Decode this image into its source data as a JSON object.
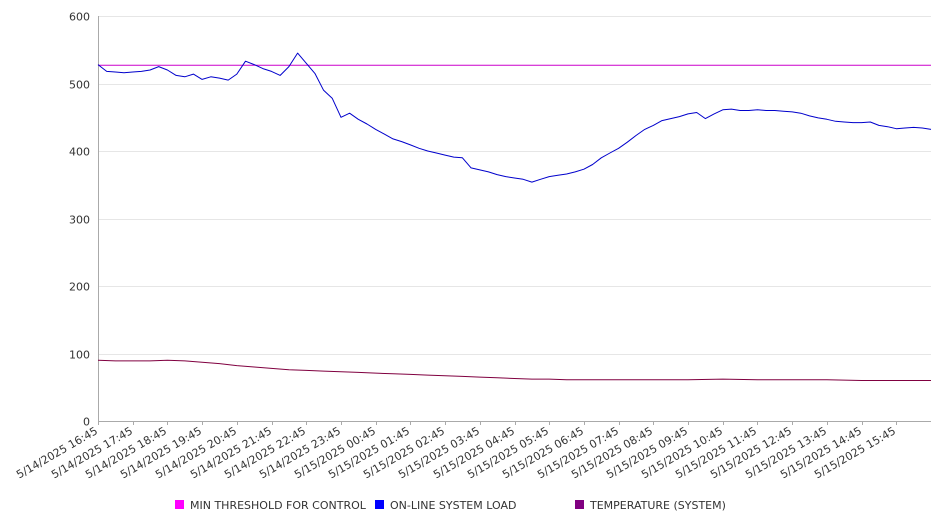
{
  "chart_data": {
    "type": "line",
    "title": "",
    "xlabel": "",
    "ylabel": "",
    "ylim": [
      0,
      600
    ],
    "y_ticks": [
      0,
      100,
      200,
      300,
      400,
      500,
      600
    ],
    "grid": "horizontal",
    "legend_position": "bottom",
    "x_tick_labels": [
      "5/14/2025 16:45",
      "5/14/2025 17:45",
      "5/14/2025 18:45",
      "5/14/2025 19:45",
      "5/14/2025 20:45",
      "5/14/2025 21:45",
      "5/14/2025 22:45",
      "5/14/2025 23:45",
      "5/15/2025 00:45",
      "5/15/2025 01:45",
      "5/15/2025 02:45",
      "5/15/2025 03:45",
      "5/15/2025 04:45",
      "5/15/2025 05:45",
      "5/15/2025 06:45",
      "5/15/2025 07:45",
      "5/15/2025 08:45",
      "5/15/2025 09:45",
      "5/15/2025 10:45",
      "5/15/2025 11:45",
      "5/15/2025 12:45",
      "5/15/2025 13:45",
      "5/15/2025 14:45",
      "5/15/2025 15:45"
    ],
    "series": [
      {
        "name": "MIN THRESHOLD FOR CONTROL",
        "color": "#cc00cc",
        "legend_color": "#ff00ff",
        "points": [
          [
            "5/14/2025 16:45",
            527
          ],
          [
            "5/15/2025 16:45",
            527
          ]
        ]
      },
      {
        "name": "ON-LINE SYSTEM LOAD",
        "color": "#0000cc",
        "legend_color": "#0000ff",
        "points": [
          [
            "5/14/2025 16:45",
            528
          ],
          [
            "5/14/2025 17:00",
            518
          ],
          [
            "5/14/2025 17:15",
            517
          ],
          [
            "5/14/2025 17:30",
            516
          ],
          [
            "5/14/2025 17:45",
            517
          ],
          [
            "5/14/2025 18:00",
            518
          ],
          [
            "5/14/2025 18:15",
            520
          ],
          [
            "5/14/2025 18:30",
            525
          ],
          [
            "5/14/2025 18:45",
            520
          ],
          [
            "5/14/2025 19:00",
            512
          ],
          [
            "5/14/2025 19:15",
            510
          ],
          [
            "5/14/2025 19:30",
            514
          ],
          [
            "5/14/2025 19:45",
            506
          ],
          [
            "5/14/2025 20:00",
            510
          ],
          [
            "5/14/2025 20:15",
            508
          ],
          [
            "5/14/2025 20:30",
            505
          ],
          [
            "5/14/2025 20:45",
            514
          ],
          [
            "5/14/2025 21:00",
            533
          ],
          [
            "5/14/2025 21:15",
            528
          ],
          [
            "5/14/2025 21:30",
            522
          ],
          [
            "5/14/2025 21:45",
            518
          ],
          [
            "5/14/2025 22:00",
            512
          ],
          [
            "5/14/2025 22:15",
            525
          ],
          [
            "5/14/2025 22:30",
            545
          ],
          [
            "5/14/2025 22:45",
            530
          ],
          [
            "5/14/2025 23:00",
            515
          ],
          [
            "5/14/2025 23:15",
            490
          ],
          [
            "5/14/2025 23:30",
            478
          ],
          [
            "5/14/2025 23:45",
            450
          ],
          [
            "5/15/2025 00:00",
            456
          ],
          [
            "5/15/2025 00:15",
            447
          ],
          [
            "5/15/2025 00:30",
            440
          ],
          [
            "5/15/2025 00:45",
            432
          ],
          [
            "5/15/2025 01:00",
            425
          ],
          [
            "5/15/2025 01:15",
            418
          ],
          [
            "5/15/2025 01:30",
            414
          ],
          [
            "5/15/2025 01:45",
            409
          ],
          [
            "5/15/2025 02:00",
            404
          ],
          [
            "5/15/2025 02:15",
            400
          ],
          [
            "5/15/2025 02:30",
            397
          ],
          [
            "5/15/2025 02:45",
            394
          ],
          [
            "5/15/2025 03:00",
            391
          ],
          [
            "5/15/2025 03:15",
            390
          ],
          [
            "5/15/2025 03:30",
            375
          ],
          [
            "5/15/2025 03:45",
            372
          ],
          [
            "5/15/2025 04:00",
            369
          ],
          [
            "5/15/2025 04:15",
            365
          ],
          [
            "5/15/2025 04:30",
            362
          ],
          [
            "5/15/2025 04:45",
            360
          ],
          [
            "5/15/2025 05:00",
            358
          ],
          [
            "5/15/2025 05:15",
            354
          ],
          [
            "5/15/2025 05:30",
            358
          ],
          [
            "5/15/2025 05:45",
            362
          ],
          [
            "5/15/2025 06:00",
            364
          ],
          [
            "5/15/2025 06:15",
            366
          ],
          [
            "5/15/2025 06:30",
            369
          ],
          [
            "5/15/2025 06:45",
            373
          ],
          [
            "5/15/2025 07:00",
            380
          ],
          [
            "5/15/2025 07:15",
            390
          ],
          [
            "5/15/2025 07:30",
            397
          ],
          [
            "5/15/2025 07:45",
            404
          ],
          [
            "5/15/2025 08:00",
            413
          ],
          [
            "5/15/2025 08:15",
            423
          ],
          [
            "5/15/2025 08:30",
            432
          ],
          [
            "5/15/2025 08:45",
            438
          ],
          [
            "5/15/2025 09:00",
            445
          ],
          [
            "5/15/2025 09:15",
            448
          ],
          [
            "5/15/2025 09:30",
            451
          ],
          [
            "5/15/2025 09:45",
            455
          ],
          [
            "5/15/2025 10:00",
            457
          ],
          [
            "5/15/2025 10:15",
            448
          ],
          [
            "5/15/2025 10:30",
            455
          ],
          [
            "5/15/2025 10:45",
            461
          ],
          [
            "5/15/2025 11:00",
            462
          ],
          [
            "5/15/2025 11:15",
            460
          ],
          [
            "5/15/2025 11:30",
            460
          ],
          [
            "5/15/2025 11:45",
            461
          ],
          [
            "5/15/2025 12:00",
            460
          ],
          [
            "5/15/2025 12:15",
            460
          ],
          [
            "5/15/2025 12:30",
            459
          ],
          [
            "5/15/2025 12:45",
            458
          ],
          [
            "5/15/2025 13:00",
            456
          ],
          [
            "5/15/2025 13:15",
            452
          ],
          [
            "5/15/2025 13:30",
            449
          ],
          [
            "5/15/2025 13:45",
            447
          ],
          [
            "5/15/2025 14:00",
            444
          ],
          [
            "5/15/2025 14:15",
            443
          ],
          [
            "5/15/2025 14:30",
            442
          ],
          [
            "5/15/2025 14:45",
            442
          ],
          [
            "5/15/2025 15:00",
            443
          ],
          [
            "5/15/2025 15:15",
            438
          ],
          [
            "5/15/2025 15:30",
            436
          ],
          [
            "5/15/2025 15:45",
            433
          ],
          [
            "5/15/2025 16:00",
            434
          ],
          [
            "5/15/2025 16:15",
            435
          ],
          [
            "5/15/2025 16:30",
            434
          ],
          [
            "5/15/2025 16:45",
            432
          ]
        ]
      },
      {
        "name": "TEMPERATURE (SYSTEM)",
        "color": "#800040",
        "legend_color": "#800080",
        "points": [
          [
            "5/14/2025 16:45",
            90
          ],
          [
            "5/14/2025 17:15",
            89
          ],
          [
            "5/14/2025 17:45",
            89
          ],
          [
            "5/14/2025 18:15",
            89
          ],
          [
            "5/14/2025 18:45",
            90
          ],
          [
            "5/14/2025 19:15",
            89
          ],
          [
            "5/14/2025 19:45",
            87
          ],
          [
            "5/14/2025 20:15",
            85
          ],
          [
            "5/14/2025 20:45",
            82
          ],
          [
            "5/14/2025 21:15",
            80
          ],
          [
            "5/14/2025 21:45",
            78
          ],
          [
            "5/14/2025 22:15",
            76
          ],
          [
            "5/14/2025 22:45",
            75
          ],
          [
            "5/14/2025 23:15",
            74
          ],
          [
            "5/14/2025 23:45",
            73
          ],
          [
            "5/15/2025 00:15",
            72
          ],
          [
            "5/15/2025 00:45",
            71
          ],
          [
            "5/15/2025 01:15",
            70
          ],
          [
            "5/15/2025 01:45",
            69
          ],
          [
            "5/15/2025 02:15",
            68
          ],
          [
            "5/15/2025 02:45",
            67
          ],
          [
            "5/15/2025 03:15",
            66
          ],
          [
            "5/15/2025 03:45",
            65
          ],
          [
            "5/15/2025 04:15",
            64
          ],
          [
            "5/15/2025 04:45",
            63
          ],
          [
            "5/15/2025 05:15",
            62
          ],
          [
            "5/15/2025 05:45",
            62
          ],
          [
            "5/15/2025 06:15",
            61
          ],
          [
            "5/15/2025 06:45",
            61
          ],
          [
            "5/15/2025 07:45",
            61
          ],
          [
            "5/15/2025 08:45",
            61
          ],
          [
            "5/15/2025 09:45",
            61
          ],
          [
            "5/15/2025 10:45",
            62
          ],
          [
            "5/15/2025 11:45",
            61
          ],
          [
            "5/15/2025 12:45",
            61
          ],
          [
            "5/15/2025 13:45",
            61
          ],
          [
            "5/15/2025 14:45",
            60
          ],
          [
            "5/15/2025 15:45",
            60
          ],
          [
            "5/15/2025 16:45",
            60
          ]
        ]
      }
    ]
  }
}
